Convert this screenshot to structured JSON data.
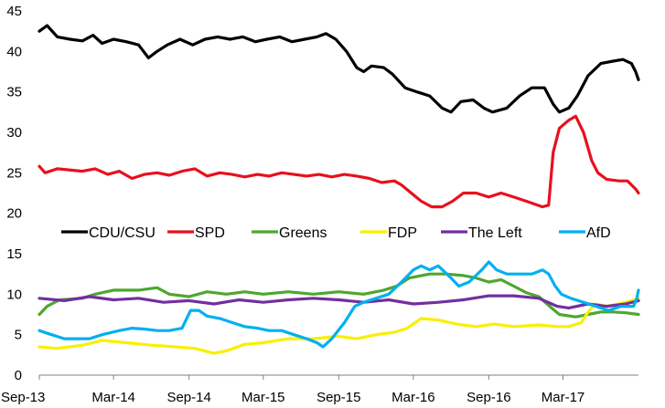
{
  "chart_data": {
    "type": "line",
    "title": "",
    "xlabel": "",
    "ylabel": "",
    "ylim": [
      0,
      45
    ],
    "yticks": [
      0,
      5,
      10,
      15,
      20,
      25,
      30,
      35,
      40,
      45
    ],
    "x_tick_labels": [
      "Sep-13",
      "Mar-14",
      "Sep-14",
      "Mar-15",
      "Sep-15",
      "Mar-16",
      "Sep-16",
      "Mar-17"
    ],
    "xlim": [
      "2013-09-01",
      "2017-09-01"
    ],
    "grid": false,
    "legend_position": "middle",
    "series": [
      {
        "name": "CDU/CSU",
        "color": "#000000",
        "points": [
          [
            "2013-09-01",
            42.5
          ],
          [
            "2013-09-20",
            43.2
          ],
          [
            "2013-10-15",
            41.8
          ],
          [
            "2013-11-15",
            41.5
          ],
          [
            "2013-12-15",
            41.3
          ],
          [
            "2014-01-10",
            42.0
          ],
          [
            "2014-02-01",
            41.0
          ],
          [
            "2014-03-01",
            41.5
          ],
          [
            "2014-04-01",
            41.2
          ],
          [
            "2014-05-01",
            40.8
          ],
          [
            "2014-05-25",
            39.2
          ],
          [
            "2014-06-15",
            40.0
          ],
          [
            "2014-07-10",
            40.8
          ],
          [
            "2014-08-10",
            41.5
          ],
          [
            "2014-09-10",
            40.8
          ],
          [
            "2014-10-10",
            41.5
          ],
          [
            "2014-11-10",
            41.8
          ],
          [
            "2014-12-10",
            41.5
          ],
          [
            "2015-01-10",
            41.8
          ],
          [
            "2015-02-10",
            41.2
          ],
          [
            "2015-03-10",
            41.5
          ],
          [
            "2015-04-10",
            41.8
          ],
          [
            "2015-05-10",
            41.2
          ],
          [
            "2015-06-10",
            41.5
          ],
          [
            "2015-07-10",
            41.8
          ],
          [
            "2015-08-01",
            42.2
          ],
          [
            "2015-08-25",
            41.5
          ],
          [
            "2015-09-20",
            40.0
          ],
          [
            "2015-10-15",
            38.0
          ],
          [
            "2015-11-01",
            37.5
          ],
          [
            "2015-11-20",
            38.2
          ],
          [
            "2015-12-20",
            38.0
          ],
          [
            "2016-01-10",
            37.2
          ],
          [
            "2016-02-10",
            35.5
          ],
          [
            "2016-03-10",
            35.0
          ],
          [
            "2016-04-10",
            34.5
          ],
          [
            "2016-05-10",
            33.0
          ],
          [
            "2016-06-01",
            32.5
          ],
          [
            "2016-06-25",
            33.8
          ],
          [
            "2016-07-25",
            34.0
          ],
          [
            "2016-08-20",
            33.0
          ],
          [
            "2016-09-10",
            32.5
          ],
          [
            "2016-10-15",
            33.0
          ],
          [
            "2016-11-15",
            34.5
          ],
          [
            "2016-12-15",
            35.5
          ],
          [
            "2017-01-15",
            35.5
          ],
          [
            "2017-02-05",
            33.5
          ],
          [
            "2017-02-20",
            32.5
          ],
          [
            "2017-03-15",
            33.0
          ],
          [
            "2017-04-05",
            34.5
          ],
          [
            "2017-05-01",
            37.0
          ],
          [
            "2017-06-01",
            38.5
          ],
          [
            "2017-07-01",
            38.8
          ],
          [
            "2017-07-25",
            39.0
          ],
          [
            "2017-08-15",
            38.5
          ],
          [
            "2017-08-25",
            37.5
          ],
          [
            "2017-09-01",
            36.5
          ]
        ]
      },
      {
        "name": "SPD",
        "color": "#e8101e",
        "points": [
          [
            "2013-09-01",
            25.8
          ],
          [
            "2013-09-15",
            25.0
          ],
          [
            "2013-10-15",
            25.5
          ],
          [
            "2013-12-15",
            25.2
          ],
          [
            "2014-01-15",
            25.5
          ],
          [
            "2014-02-15",
            24.8
          ],
          [
            "2014-03-15",
            25.2
          ],
          [
            "2014-04-15",
            24.3
          ],
          [
            "2014-05-15",
            24.8
          ],
          [
            "2014-06-15",
            25.0
          ],
          [
            "2014-07-15",
            24.7
          ],
          [
            "2014-08-15",
            25.2
          ],
          [
            "2014-09-15",
            25.5
          ],
          [
            "2014-10-15",
            24.6
          ],
          [
            "2014-11-15",
            25.0
          ],
          [
            "2014-12-15",
            24.8
          ],
          [
            "2015-01-15",
            24.5
          ],
          [
            "2015-02-15",
            24.8
          ],
          [
            "2015-03-15",
            24.6
          ],
          [
            "2015-04-15",
            25.0
          ],
          [
            "2015-05-15",
            24.8
          ],
          [
            "2015-06-15",
            24.6
          ],
          [
            "2015-07-15",
            24.8
          ],
          [
            "2015-08-15",
            24.5
          ],
          [
            "2015-09-15",
            24.8
          ],
          [
            "2015-10-15",
            24.6
          ],
          [
            "2015-11-15",
            24.3
          ],
          [
            "2015-12-15",
            23.8
          ],
          [
            "2016-01-15",
            24.0
          ],
          [
            "2016-02-01",
            23.5
          ],
          [
            "2016-02-25",
            22.5
          ],
          [
            "2016-03-20",
            21.5
          ],
          [
            "2016-04-15",
            20.8
          ],
          [
            "2016-05-10",
            20.8
          ],
          [
            "2016-06-05",
            21.5
          ],
          [
            "2016-07-01",
            22.5
          ],
          [
            "2016-08-01",
            22.5
          ],
          [
            "2016-09-01",
            22.0
          ],
          [
            "2016-10-01",
            22.5
          ],
          [
            "2016-11-01",
            22.0
          ],
          [
            "2016-12-01",
            21.5
          ],
          [
            "2017-01-10",
            20.8
          ],
          [
            "2017-01-25",
            21.0
          ],
          [
            "2017-02-05",
            27.5
          ],
          [
            "2017-02-20",
            30.5
          ],
          [
            "2017-03-15",
            31.5
          ],
          [
            "2017-04-01",
            32.0
          ],
          [
            "2017-04-20",
            30.0
          ],
          [
            "2017-05-10",
            26.5
          ],
          [
            "2017-05-25",
            25.0
          ],
          [
            "2017-06-15",
            24.2
          ],
          [
            "2017-07-15",
            24.0
          ],
          [
            "2017-08-05",
            24.0
          ],
          [
            "2017-08-25",
            23.0
          ],
          [
            "2017-09-01",
            22.5
          ]
        ]
      },
      {
        "name": "Greens",
        "color": "#4ea72e",
        "points": [
          [
            "2013-09-01",
            7.5
          ],
          [
            "2013-09-20",
            8.5
          ],
          [
            "2013-10-20",
            9.3
          ],
          [
            "2013-12-15",
            9.5
          ],
          [
            "2014-01-15",
            10.0
          ],
          [
            "2014-03-01",
            10.5
          ],
          [
            "2014-05-01",
            10.5
          ],
          [
            "2014-06-15",
            10.8
          ],
          [
            "2014-07-15",
            10.0
          ],
          [
            "2014-09-01",
            9.7
          ],
          [
            "2014-10-15",
            10.3
          ],
          [
            "2014-12-01",
            10.0
          ],
          [
            "2015-01-15",
            10.3
          ],
          [
            "2015-03-01",
            10.0
          ],
          [
            "2015-05-01",
            10.3
          ],
          [
            "2015-07-01",
            10.0
          ],
          [
            "2015-09-01",
            10.3
          ],
          [
            "2015-11-01",
            10.0
          ],
          [
            "2015-12-20",
            10.5
          ],
          [
            "2016-01-20",
            11.0
          ],
          [
            "2016-02-20",
            12.0
          ],
          [
            "2016-04-10",
            12.5
          ],
          [
            "2016-05-20",
            12.5
          ],
          [
            "2016-07-01",
            12.3
          ],
          [
            "2016-08-01",
            12.0
          ],
          [
            "2016-09-01",
            11.5
          ],
          [
            "2016-10-01",
            11.8
          ],
          [
            "2016-11-01",
            11.0
          ],
          [
            "2016-12-01",
            10.2
          ],
          [
            "2017-01-01",
            9.7
          ],
          [
            "2017-02-01",
            8.3
          ],
          [
            "2017-02-20",
            7.5
          ],
          [
            "2017-04-01",
            7.2
          ],
          [
            "2017-05-01",
            7.5
          ],
          [
            "2017-06-01",
            7.8
          ],
          [
            "2017-07-01",
            7.8
          ],
          [
            "2017-08-01",
            7.7
          ],
          [
            "2017-09-01",
            7.5
          ]
        ]
      },
      {
        "name": "FDP",
        "color": "#f8f000",
        "points": [
          [
            "2013-09-01",
            3.5
          ],
          [
            "2013-10-15",
            3.3
          ],
          [
            "2013-12-15",
            3.7
          ],
          [
            "2014-02-01",
            4.3
          ],
          [
            "2014-04-01",
            4.0
          ],
          [
            "2014-06-01",
            3.7
          ],
          [
            "2014-08-01",
            3.5
          ],
          [
            "2014-09-15",
            3.3
          ],
          [
            "2014-11-01",
            2.7
          ],
          [
            "2014-12-01",
            3.0
          ],
          [
            "2015-01-15",
            3.8
          ],
          [
            "2015-03-01",
            4.0
          ],
          [
            "2015-05-01",
            4.5
          ],
          [
            "2015-07-01",
            4.5
          ],
          [
            "2015-09-01",
            4.8
          ],
          [
            "2015-10-15",
            4.5
          ],
          [
            "2015-12-01",
            5.0
          ],
          [
            "2016-01-15",
            5.3
          ],
          [
            "2016-02-15",
            5.8
          ],
          [
            "2016-03-20",
            7.0
          ],
          [
            "2016-05-01",
            6.8
          ],
          [
            "2016-06-15",
            6.3
          ],
          [
            "2016-08-01",
            6.0
          ],
          [
            "2016-09-15",
            6.3
          ],
          [
            "2016-11-01",
            6.0
          ],
          [
            "2017-01-01",
            6.2
          ],
          [
            "2017-02-15",
            6.0
          ],
          [
            "2017-03-15",
            6.0
          ],
          [
            "2017-04-15",
            6.5
          ],
          [
            "2017-05-01",
            7.8
          ],
          [
            "2017-05-20",
            8.8
          ],
          [
            "2017-06-15",
            8.5
          ],
          [
            "2017-07-15",
            8.8
          ],
          [
            "2017-08-15",
            9.2
          ],
          [
            "2017-09-01",
            9.5
          ]
        ]
      },
      {
        "name": "The Left",
        "color": "#7030a0",
        "points": [
          [
            "2013-09-01",
            9.5
          ],
          [
            "2013-11-01",
            9.2
          ],
          [
            "2014-01-01",
            9.7
          ],
          [
            "2014-03-01",
            9.3
          ],
          [
            "2014-05-01",
            9.5
          ],
          [
            "2014-07-01",
            9.0
          ],
          [
            "2014-09-01",
            9.2
          ],
          [
            "2014-11-01",
            8.8
          ],
          [
            "2015-01-01",
            9.3
          ],
          [
            "2015-03-01",
            9.0
          ],
          [
            "2015-05-01",
            9.3
          ],
          [
            "2015-07-01",
            9.5
          ],
          [
            "2015-09-01",
            9.3
          ],
          [
            "2015-11-01",
            9.0
          ],
          [
            "2016-01-01",
            9.3
          ],
          [
            "2016-03-01",
            8.8
          ],
          [
            "2016-05-01",
            9.0
          ],
          [
            "2016-07-01",
            9.3
          ],
          [
            "2016-09-01",
            9.8
          ],
          [
            "2016-11-01",
            9.8
          ],
          [
            "2017-01-01",
            9.5
          ],
          [
            "2017-02-15",
            8.5
          ],
          [
            "2017-03-15",
            8.3
          ],
          [
            "2017-05-01",
            8.8
          ],
          [
            "2017-06-15",
            8.5
          ],
          [
            "2017-08-01",
            8.8
          ],
          [
            "2017-09-01",
            9.2
          ]
        ]
      },
      {
        "name": "AfD",
        "color": "#00b0f0",
        "points": [
          [
            "2013-09-01",
            5.5
          ],
          [
            "2013-10-01",
            5.0
          ],
          [
            "2013-11-01",
            4.5
          ],
          [
            "2013-12-01",
            4.5
          ],
          [
            "2014-01-01",
            4.5
          ],
          [
            "2014-02-01",
            5.0
          ],
          [
            "2014-03-15",
            5.5
          ],
          [
            "2014-04-15",
            5.8
          ],
          [
            "2014-05-15",
            5.7
          ],
          [
            "2014-06-15",
            5.5
          ],
          [
            "2014-07-15",
            5.5
          ],
          [
            "2014-08-15",
            5.8
          ],
          [
            "2014-09-05",
            8.0
          ],
          [
            "2014-09-25",
            8.0
          ],
          [
            "2014-10-15",
            7.3
          ],
          [
            "2014-11-15",
            7.0
          ],
          [
            "2014-12-15",
            6.5
          ],
          [
            "2015-01-15",
            6.0
          ],
          [
            "2015-02-15",
            5.8
          ],
          [
            "2015-03-15",
            5.5
          ],
          [
            "2015-04-15",
            5.5
          ],
          [
            "2015-05-15",
            5.0
          ],
          [
            "2015-06-15",
            4.5
          ],
          [
            "2015-07-10",
            4.0
          ],
          [
            "2015-07-25",
            3.5
          ],
          [
            "2015-08-15",
            4.5
          ],
          [
            "2015-09-15",
            6.5
          ],
          [
            "2015-10-10",
            8.5
          ],
          [
            "2015-11-01",
            9.0
          ],
          [
            "2015-12-01",
            9.5
          ],
          [
            "2016-01-01",
            10.0
          ],
          [
            "2016-02-01",
            11.5
          ],
          [
            "2016-03-01",
            13.0
          ],
          [
            "2016-03-20",
            13.5
          ],
          [
            "2016-04-10",
            13.0
          ],
          [
            "2016-05-01",
            13.5
          ],
          [
            "2016-06-01",
            12.0
          ],
          [
            "2016-06-20",
            11.0
          ],
          [
            "2016-07-15",
            11.5
          ],
          [
            "2016-08-15",
            13.0
          ],
          [
            "2016-09-01",
            14.0
          ],
          [
            "2016-09-20",
            13.0
          ],
          [
            "2016-10-15",
            12.5
          ],
          [
            "2016-11-15",
            12.5
          ],
          [
            "2016-12-15",
            12.5
          ],
          [
            "2017-01-10",
            13.0
          ],
          [
            "2017-01-25",
            12.5
          ],
          [
            "2017-02-10",
            11.0
          ],
          [
            "2017-02-25",
            10.0
          ],
          [
            "2017-03-20",
            9.5
          ],
          [
            "2017-04-20",
            9.0
          ],
          [
            "2017-05-20",
            8.5
          ],
          [
            "2017-06-20",
            8.0
          ],
          [
            "2017-07-20",
            8.5
          ],
          [
            "2017-08-20",
            8.5
          ],
          [
            "2017-08-28",
            9.5
          ],
          [
            "2017-09-01",
            10.5
          ]
        ]
      }
    ]
  }
}
